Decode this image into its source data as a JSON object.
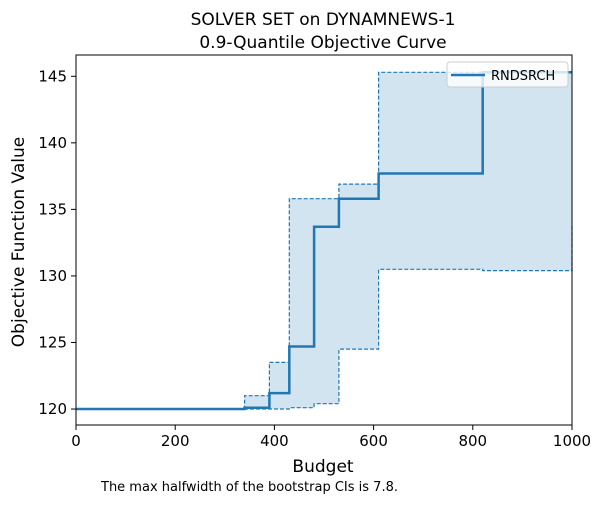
{
  "chart_data": {
    "type": "line",
    "title": "SOLVER SET on DYNAMNEWS-1",
    "subtitle": "0.9-Quantile Objective Curve",
    "xlabel": "Budget",
    "ylabel": "Objective Function Value",
    "xlim": [
      0,
      1000
    ],
    "ylim": [
      118.8,
      146.6
    ],
    "xticks": [
      0,
      200,
      400,
      600,
      800,
      1000
    ],
    "yticks": [
      120,
      125,
      130,
      135,
      140,
      145
    ],
    "grid": false,
    "legend_placement": "top-right",
    "series": [
      {
        "name": "RNDSRCH",
        "color": "#1f77b4",
        "step": "post",
        "x": [
          0,
          340,
          390,
          430,
          480,
          530,
          610,
          820,
          1000
        ],
        "y": [
          120.0,
          120.1,
          121.2,
          124.7,
          133.7,
          135.8,
          137.7,
          145.3,
          145.3
        ],
        "ci_lower": [
          120.0,
          120.0,
          120.0,
          120.1,
          120.4,
          124.5,
          130.5,
          130.4,
          133.8
        ],
        "ci_upper": [
          120.0,
          121.0,
          123.5,
          135.8,
          135.8,
          136.9,
          145.3,
          145.3,
          145.3
        ]
      }
    ]
  },
  "footnote": "The max halfwidth of the bootstrap CIs is 7.8."
}
